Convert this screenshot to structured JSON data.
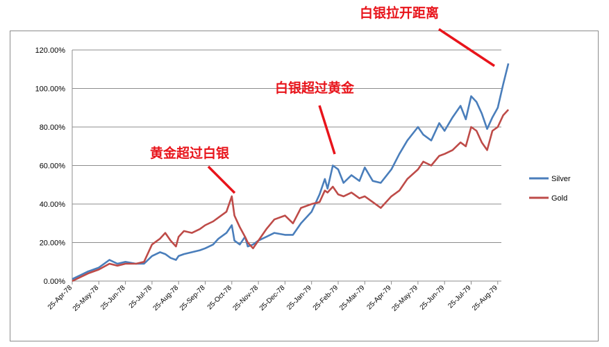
{
  "chart_data": {
    "type": "line",
    "title": "",
    "xlabel": "",
    "ylabel": "",
    "ylim": [
      0,
      120
    ],
    "y_ticks": [
      "0.00%",
      "20.00%",
      "40.00%",
      "60.00%",
      "80.00%",
      "100.00%",
      "120.00%"
    ],
    "x_ticks": [
      "25-Apr-78",
      "25-May-78",
      "25-Jun-78",
      "25-Jul-78",
      "25-Aug-78",
      "25-Sep-78",
      "25-Oct-78",
      "25-Nov-78",
      "25-Dec-78",
      "25-Jan-79",
      "25-Feb-79",
      "25-Mar-79",
      "25-Apr-79",
      "25-May-79",
      "25-Jun-79",
      "25-Jul-79",
      "25-Aug-79"
    ],
    "grid": "horizontal",
    "legend_position": "right",
    "series": [
      {
        "name": "Silver",
        "color": "#4a7ebb",
        "x": [
          0,
          0.3,
          0.6,
          1.0,
          1.4,
          1.7,
          2.0,
          2.4,
          2.7,
          3.0,
          3.3,
          3.5,
          3.7,
          3.9,
          4.0,
          4.2,
          4.5,
          4.8,
          5.0,
          5.3,
          5.5,
          5.8,
          6.0,
          6.1,
          6.3,
          6.5,
          6.6,
          6.8,
          7.0,
          7.3,
          7.6,
          8.0,
          8.3,
          8.6,
          9.0,
          9.3,
          9.5,
          9.6,
          9.8,
          10.0,
          10.2,
          10.5,
          10.8,
          11.0,
          11.3,
          11.6,
          12.0,
          12.3,
          12.6,
          13.0,
          13.2,
          13.5,
          13.8,
          14.0,
          14.3,
          14.6,
          14.8,
          15.0,
          15.2,
          15.4,
          15.6,
          15.8,
          16.0,
          16.2,
          16.4
        ],
        "values": [
          1,
          3,
          5,
          7,
          11,
          9,
          10,
          9,
          9,
          13,
          15,
          14,
          12,
          11,
          13,
          14,
          15,
          16,
          17,
          19,
          22,
          25,
          29,
          21,
          19,
          23,
          18,
          19,
          21,
          23,
          25,
          24,
          24,
          30,
          36,
          45,
          53,
          48,
          60,
          58,
          51,
          55,
          52,
          59,
          52,
          51,
          58,
          66,
          73,
          80,
          76,
          73,
          82,
          78,
          85,
          91,
          84,
          96,
          93,
          87,
          79,
          85,
          90,
          102,
          113
        ]
      },
      {
        "name": "Gold",
        "color": "#be4b48",
        "x": [
          0,
          0.3,
          0.6,
          1.0,
          1.4,
          1.7,
          2.0,
          2.4,
          2.7,
          3.0,
          3.3,
          3.5,
          3.7,
          3.9,
          4.0,
          4.2,
          4.5,
          4.8,
          5.0,
          5.3,
          5.5,
          5.8,
          6.0,
          6.1,
          6.3,
          6.5,
          6.6,
          6.8,
          7.0,
          7.3,
          7.6,
          8.0,
          8.3,
          8.6,
          9.0,
          9.3,
          9.5,
          9.6,
          9.8,
          10.0,
          10.2,
          10.5,
          10.8,
          11.0,
          11.3,
          11.6,
          12.0,
          12.3,
          12.6,
          13.0,
          13.2,
          13.5,
          13.8,
          14.0,
          14.3,
          14.6,
          14.8,
          15.0,
          15.2,
          15.4,
          15.6,
          15.8,
          16.0,
          16.2,
          16.4
        ],
        "values": [
          0,
          2,
          4,
          6,
          9,
          8,
          9,
          9,
          10,
          19,
          22,
          25,
          21,
          18,
          23,
          26,
          25,
          27,
          29,
          31,
          33,
          36,
          44,
          34,
          28,
          23,
          20,
          17,
          21,
          27,
          32,
          34,
          30,
          38,
          40,
          41,
          47,
          46,
          49,
          45,
          44,
          46,
          43,
          44,
          41,
          38,
          44,
          47,
          53,
          58,
          62,
          60,
          65,
          66,
          68,
          72,
          70,
          80,
          78,
          72,
          68,
          78,
          80,
          86,
          89
        ]
      }
    ]
  },
  "annotations": [
    {
      "text": "白银拉开距离",
      "color": "#e8141b"
    },
    {
      "text": "白银超过黄金",
      "color": "#e8141b"
    },
    {
      "text": "黄金超过白银",
      "color": "#e8141b"
    }
  ]
}
